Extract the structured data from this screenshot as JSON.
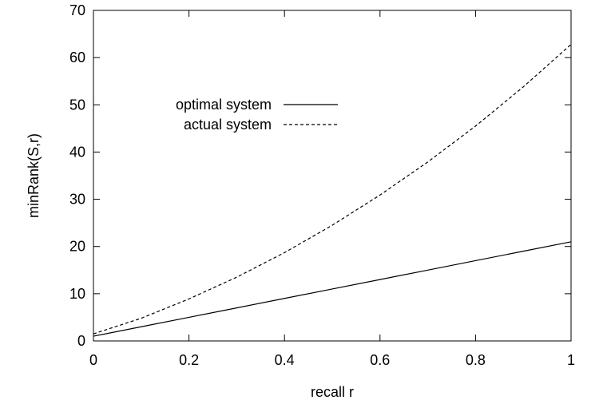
{
  "chart_data": {
    "type": "line",
    "xlabel": "recall r",
    "ylabel": "minRank(S,r)",
    "xlim": [
      0,
      1
    ],
    "ylim": [
      0,
      70
    ],
    "x_ticks": [
      0,
      0.2,
      0.4,
      0.6,
      0.8,
      1
    ],
    "y_ticks": [
      0,
      10,
      20,
      30,
      40,
      50,
      60,
      70
    ],
    "x_tick_labels": [
      "0",
      "0.2",
      "0.4",
      "0.6",
      "0.8",
      "1"
    ],
    "y_tick_labels": [
      "0",
      "10",
      "20",
      "30",
      "40",
      "50",
      "60",
      "70"
    ],
    "grid": false,
    "legend_position": "upper-left",
    "x": [
      0,
      0.1,
      0.2,
      0.3,
      0.4,
      0.5,
      0.6,
      0.7,
      0.8,
      0.9,
      1.0
    ],
    "series": [
      {
        "name": "optimal system",
        "style": "solid",
        "color": "#000000",
        "values": [
          1,
          3,
          5,
          7,
          9,
          11,
          13,
          15,
          17,
          19,
          21
        ]
      },
      {
        "name": "actual system",
        "style": "dashed",
        "color": "#000000",
        "values": [
          1.5,
          4.8,
          8.9,
          13.5,
          18.7,
          24.5,
          30.9,
          37.9,
          45.5,
          53.8,
          62.8
        ]
      }
    ]
  }
}
